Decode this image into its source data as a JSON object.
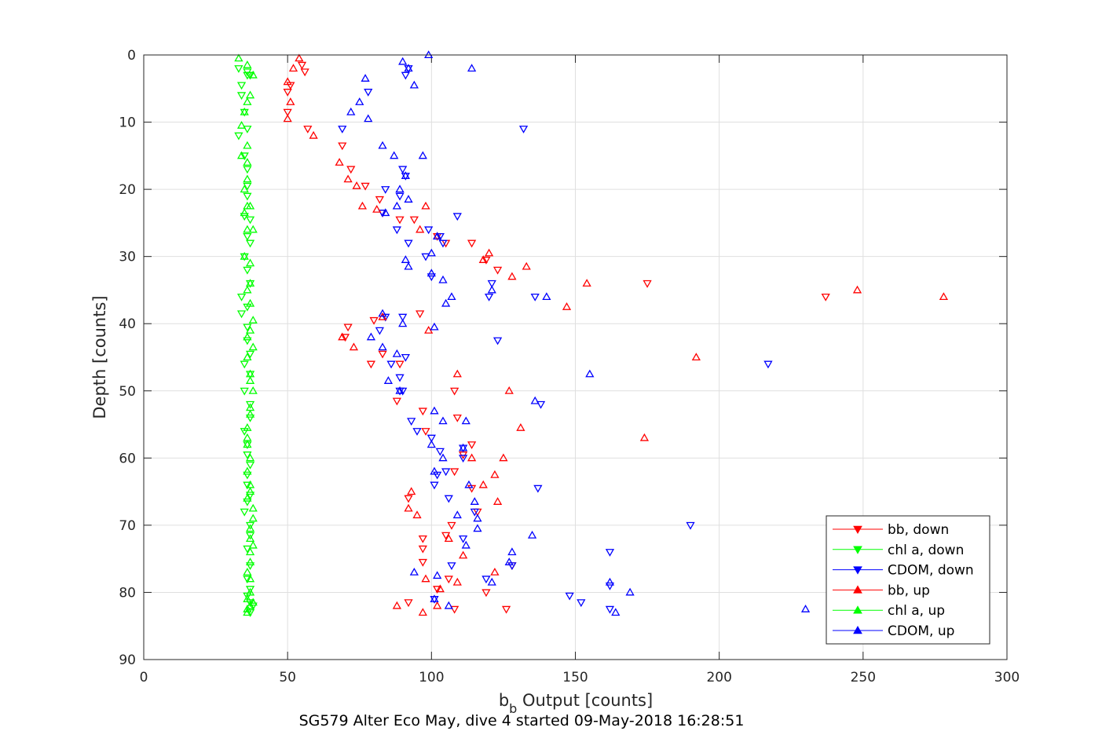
{
  "chart_data": {
    "type": "scatter",
    "xlabel_main": "b",
    "xlabel_sub": "b",
    "xlabel_rest": " Output [counts]",
    "ylabel": "Depth [counts]",
    "caption": "SG579 Alter Eco May, dive 4 started 09-May-2018 16:28:51",
    "xlim": [
      0,
      300
    ],
    "ylim": [
      90,
      0
    ],
    "y_reversed": true,
    "grid": true,
    "legend_position": "bottom-right",
    "xticks": [
      "0",
      "50",
      "100",
      "150",
      "200",
      "250",
      "300"
    ],
    "yticks": [
      "0",
      "10",
      "20",
      "30",
      "40",
      "50",
      "60",
      "70",
      "80",
      "90"
    ],
    "series": [
      {
        "name": "bb, down",
        "marker": "triangle-down",
        "color": "#ff0000",
        "points": [
          [
            55,
            1.5
          ],
          [
            56,
            2.5
          ],
          [
            51,
            4.5
          ],
          [
            50,
            5.5
          ],
          [
            50,
            8.5
          ],
          [
            57,
            11
          ],
          [
            69,
            13.5
          ],
          [
            72,
            17
          ],
          [
            77,
            19.5
          ],
          [
            82,
            21.5
          ],
          [
            83,
            23.5
          ],
          [
            89,
            24.5
          ],
          [
            94,
            24.5
          ],
          [
            102,
            27
          ],
          [
            105,
            28
          ],
          [
            114,
            28
          ],
          [
            119,
            30.5
          ],
          [
            123,
            32
          ],
          [
            175,
            34
          ],
          [
            237,
            36
          ],
          [
            80,
            39.5
          ],
          [
            96,
            38.5
          ],
          [
            70,
            42
          ],
          [
            71,
            40.5
          ],
          [
            83,
            44.5
          ],
          [
            79,
            46
          ],
          [
            89,
            46
          ],
          [
            108,
            50
          ],
          [
            88,
            51.5
          ],
          [
            97,
            53
          ],
          [
            109,
            54
          ],
          [
            98,
            56
          ],
          [
            114,
            58
          ],
          [
            111,
            59.5
          ],
          [
            108,
            62
          ],
          [
            114,
            64.5
          ],
          [
            92,
            66
          ],
          [
            116,
            68
          ],
          [
            107,
            70
          ],
          [
            105,
            71.5
          ],
          [
            97,
            72
          ],
          [
            97,
            73.5
          ],
          [
            97,
            75.5
          ],
          [
            128,
            76
          ],
          [
            119,
            80
          ],
          [
            106,
            78
          ],
          [
            102,
            79.5
          ],
          [
            126,
            82.5
          ],
          [
            108,
            82.5
          ],
          [
            92,
            81.5
          ]
        ]
      },
      {
        "name": "chl a, down",
        "marker": "triangle-down",
        "color": "#00ff00",
        "points": [
          [
            33,
            2
          ],
          [
            36,
            3
          ],
          [
            34,
            4.5
          ],
          [
            34,
            6
          ],
          [
            36,
            2.5
          ],
          [
            37,
            3
          ],
          [
            35,
            8.5
          ],
          [
            33,
            12
          ],
          [
            36,
            11
          ],
          [
            35,
            15
          ],
          [
            36,
            17
          ],
          [
            36,
            19.5
          ],
          [
            36,
            21
          ],
          [
            35,
            24
          ],
          [
            37,
            24.5
          ],
          [
            36,
            27
          ],
          [
            37,
            28
          ],
          [
            35,
            30
          ],
          [
            36,
            32
          ],
          [
            37,
            34
          ],
          [
            34,
            36
          ],
          [
            36,
            37.5
          ],
          [
            34,
            38.5
          ],
          [
            36,
            40.5
          ],
          [
            36,
            42.5
          ],
          [
            37,
            44.5
          ],
          [
            35,
            46
          ],
          [
            37,
            47.5
          ],
          [
            35,
            50
          ],
          [
            37,
            52
          ],
          [
            37,
            54
          ],
          [
            35,
            56
          ],
          [
            36,
            58
          ],
          [
            36,
            59.5
          ],
          [
            37,
            61
          ],
          [
            36,
            62.5
          ],
          [
            36,
            64
          ],
          [
            37,
            65.5
          ],
          [
            36,
            66.5
          ],
          [
            35,
            68
          ],
          [
            37,
            70
          ],
          [
            37,
            71.5
          ],
          [
            36,
            73.5
          ],
          [
            37,
            76
          ],
          [
            36,
            78
          ],
          [
            37,
            79.5
          ],
          [
            36,
            80.5
          ],
          [
            37,
            81.5
          ],
          [
            38,
            82
          ],
          [
            37,
            83
          ]
        ]
      },
      {
        "name": "CDOM, down",
        "marker": "triangle-down",
        "color": "#0000ff",
        "points": [
          [
            92,
            2
          ],
          [
            91,
            3
          ],
          [
            78,
            5.5
          ],
          [
            69,
            11
          ],
          [
            132,
            11
          ],
          [
            90,
            17
          ],
          [
            91,
            18
          ],
          [
            84,
            20
          ],
          [
            89,
            21
          ],
          [
            83,
            23.5
          ],
          [
            109,
            24
          ],
          [
            88,
            26
          ],
          [
            99,
            26
          ],
          [
            103,
            27
          ],
          [
            92,
            28
          ],
          [
            104,
            28
          ],
          [
            98,
            30
          ],
          [
            100,
            33
          ],
          [
            121,
            34
          ],
          [
            120,
            36
          ],
          [
            136,
            36
          ],
          [
            84,
            39
          ],
          [
            90,
            39
          ],
          [
            82,
            41
          ],
          [
            91,
            45
          ],
          [
            86,
            46
          ],
          [
            89,
            48
          ],
          [
            89,
            50
          ],
          [
            90,
            50
          ],
          [
            138,
            52
          ],
          [
            93,
            54.5
          ],
          [
            95,
            56
          ],
          [
            100,
            57
          ],
          [
            103,
            59
          ],
          [
            111,
            58.5
          ],
          [
            111,
            60
          ],
          [
            102,
            62.5
          ],
          [
            105,
            62
          ],
          [
            137,
            64.5
          ],
          [
            101,
            64
          ],
          [
            106,
            66
          ],
          [
            115,
            68
          ],
          [
            123,
            42.5
          ],
          [
            217,
            46
          ],
          [
            190,
            70
          ],
          [
            111,
            72
          ],
          [
            162,
            74
          ],
          [
            107,
            76
          ],
          [
            128,
            76
          ],
          [
            119,
            78
          ],
          [
            162,
            79
          ],
          [
            148,
            80.5
          ],
          [
            152,
            81.5
          ],
          [
            162,
            82.5
          ],
          [
            101,
            81
          ]
        ]
      },
      {
        "name": "bb, up",
        "marker": "triangle-up",
        "color": "#ff0000",
        "points": [
          [
            54,
            0.5
          ],
          [
            52,
            2
          ],
          [
            50,
            4
          ],
          [
            51,
            7
          ],
          [
            50,
            9.5
          ],
          [
            59,
            12
          ],
          [
            68,
            16
          ],
          [
            71,
            18.5
          ],
          [
            74,
            19.5
          ],
          [
            76,
            22.5
          ],
          [
            81,
            23
          ],
          [
            98,
            22.5
          ],
          [
            96,
            26
          ],
          [
            102,
            27
          ],
          [
            120,
            29.5
          ],
          [
            118,
            30.5
          ],
          [
            133,
            31.5
          ],
          [
            128,
            33
          ],
          [
            154,
            34
          ],
          [
            147,
            37.5
          ],
          [
            248,
            35
          ],
          [
            278,
            36
          ],
          [
            83,
            39
          ],
          [
            99,
            41
          ],
          [
            73,
            43.5
          ],
          [
            69,
            42
          ],
          [
            192,
            45
          ],
          [
            109,
            47.5
          ],
          [
            127,
            50
          ],
          [
            131,
            55.5
          ],
          [
            174,
            57
          ],
          [
            114,
            60
          ],
          [
            125,
            60
          ],
          [
            122,
            62.5
          ],
          [
            118,
            64
          ],
          [
            123,
            66.5
          ],
          [
            93,
            65
          ],
          [
            92,
            67.5
          ],
          [
            95,
            68.5
          ],
          [
            106,
            72
          ],
          [
            111,
            74.5
          ],
          [
            122,
            77
          ],
          [
            109,
            78.5
          ],
          [
            103,
            79.5
          ],
          [
            98,
            78
          ],
          [
            88,
            82
          ],
          [
            97,
            83
          ],
          [
            102,
            82
          ]
        ]
      },
      {
        "name": "chl a, up",
        "marker": "triangle-up",
        "color": "#00ff00",
        "points": [
          [
            33,
            0.5
          ],
          [
            36,
            1.5
          ],
          [
            38,
            3
          ],
          [
            37,
            6
          ],
          [
            36,
            7
          ],
          [
            35,
            8.5
          ],
          [
            34,
            10.5
          ],
          [
            36,
            13.5
          ],
          [
            34,
            15
          ],
          [
            36,
            16
          ],
          [
            36,
            18.5
          ],
          [
            35,
            20
          ],
          [
            36,
            22.5
          ],
          [
            37,
            22.5
          ],
          [
            35,
            23.5
          ],
          [
            38,
            26
          ],
          [
            36,
            26
          ],
          [
            35,
            30
          ],
          [
            37,
            31
          ],
          [
            37,
            34
          ],
          [
            36,
            35
          ],
          [
            37,
            37
          ],
          [
            38,
            39.5
          ],
          [
            37,
            41
          ],
          [
            36,
            42
          ],
          [
            38,
            43.5
          ],
          [
            36,
            45
          ],
          [
            37,
            47.5
          ],
          [
            37,
            48.5
          ],
          [
            38,
            50
          ],
          [
            37,
            52.5
          ],
          [
            37,
            53.5
          ],
          [
            36,
            55.5
          ],
          [
            36,
            57
          ],
          [
            36,
            58
          ],
          [
            37,
            60
          ],
          [
            36,
            62
          ],
          [
            37,
            64
          ],
          [
            37,
            65
          ],
          [
            36,
            66
          ],
          [
            38,
            67.5
          ],
          [
            38,
            69
          ],
          [
            37,
            70.5
          ],
          [
            37,
            72
          ],
          [
            38,
            73
          ],
          [
            37,
            74
          ],
          [
            37,
            75.5
          ],
          [
            36,
            77
          ],
          [
            37,
            78
          ],
          [
            37,
            80
          ],
          [
            36,
            81
          ],
          [
            37,
            82
          ],
          [
            38,
            81.5
          ],
          [
            36,
            82.5
          ],
          [
            36,
            83
          ]
        ]
      },
      {
        "name": "CDOM, up",
        "marker": "triangle-up",
        "color": "#0000ff",
        "points": [
          [
            99,
            0
          ],
          [
            114,
            2
          ],
          [
            90,
            1
          ],
          [
            92,
            2
          ],
          [
            94,
            4.5
          ],
          [
            77,
            3.5
          ],
          [
            75,
            7
          ],
          [
            72,
            8.5
          ],
          [
            78,
            9.5
          ],
          [
            83,
            13.5
          ],
          [
            87,
            15
          ],
          [
            97,
            15
          ],
          [
            91,
            18
          ],
          [
            89,
            20
          ],
          [
            92,
            21.5
          ],
          [
            88,
            22.5
          ],
          [
            84,
            23.5
          ],
          [
            102,
            27
          ],
          [
            100,
            29.5
          ],
          [
            91,
            30.5
          ],
          [
            92,
            31.5
          ],
          [
            100,
            32.5
          ],
          [
            104,
            33.5
          ],
          [
            121,
            35
          ],
          [
            107,
            36
          ],
          [
            140,
            36
          ],
          [
            105,
            37
          ],
          [
            83,
            38.5
          ],
          [
            90,
            40
          ],
          [
            101,
            40.5
          ],
          [
            79,
            42
          ],
          [
            83,
            43.5
          ],
          [
            88,
            44.5
          ],
          [
            155,
            47.5
          ],
          [
            85,
            48.5
          ],
          [
            89,
            50
          ],
          [
            136,
            51.5
          ],
          [
            101,
            53
          ],
          [
            104,
            54.5
          ],
          [
            112,
            54.5
          ],
          [
            100,
            58
          ],
          [
            111,
            58.5
          ],
          [
            104,
            60
          ],
          [
            101,
            62
          ],
          [
            113,
            64
          ],
          [
            115,
            66.5
          ],
          [
            109,
            68.5
          ],
          [
            116,
            69
          ],
          [
            116,
            70.5
          ],
          [
            135,
            71.5
          ],
          [
            112,
            73
          ],
          [
            127,
            75.5
          ],
          [
            128,
            74
          ],
          [
            94,
            77
          ],
          [
            102,
            77.5
          ],
          [
            121,
            78.5
          ],
          [
            162,
            78.5
          ],
          [
            169,
            80
          ],
          [
            106,
            82
          ],
          [
            164,
            83
          ],
          [
            230,
            82.5
          ],
          [
            101,
            81
          ]
        ]
      }
    ]
  }
}
